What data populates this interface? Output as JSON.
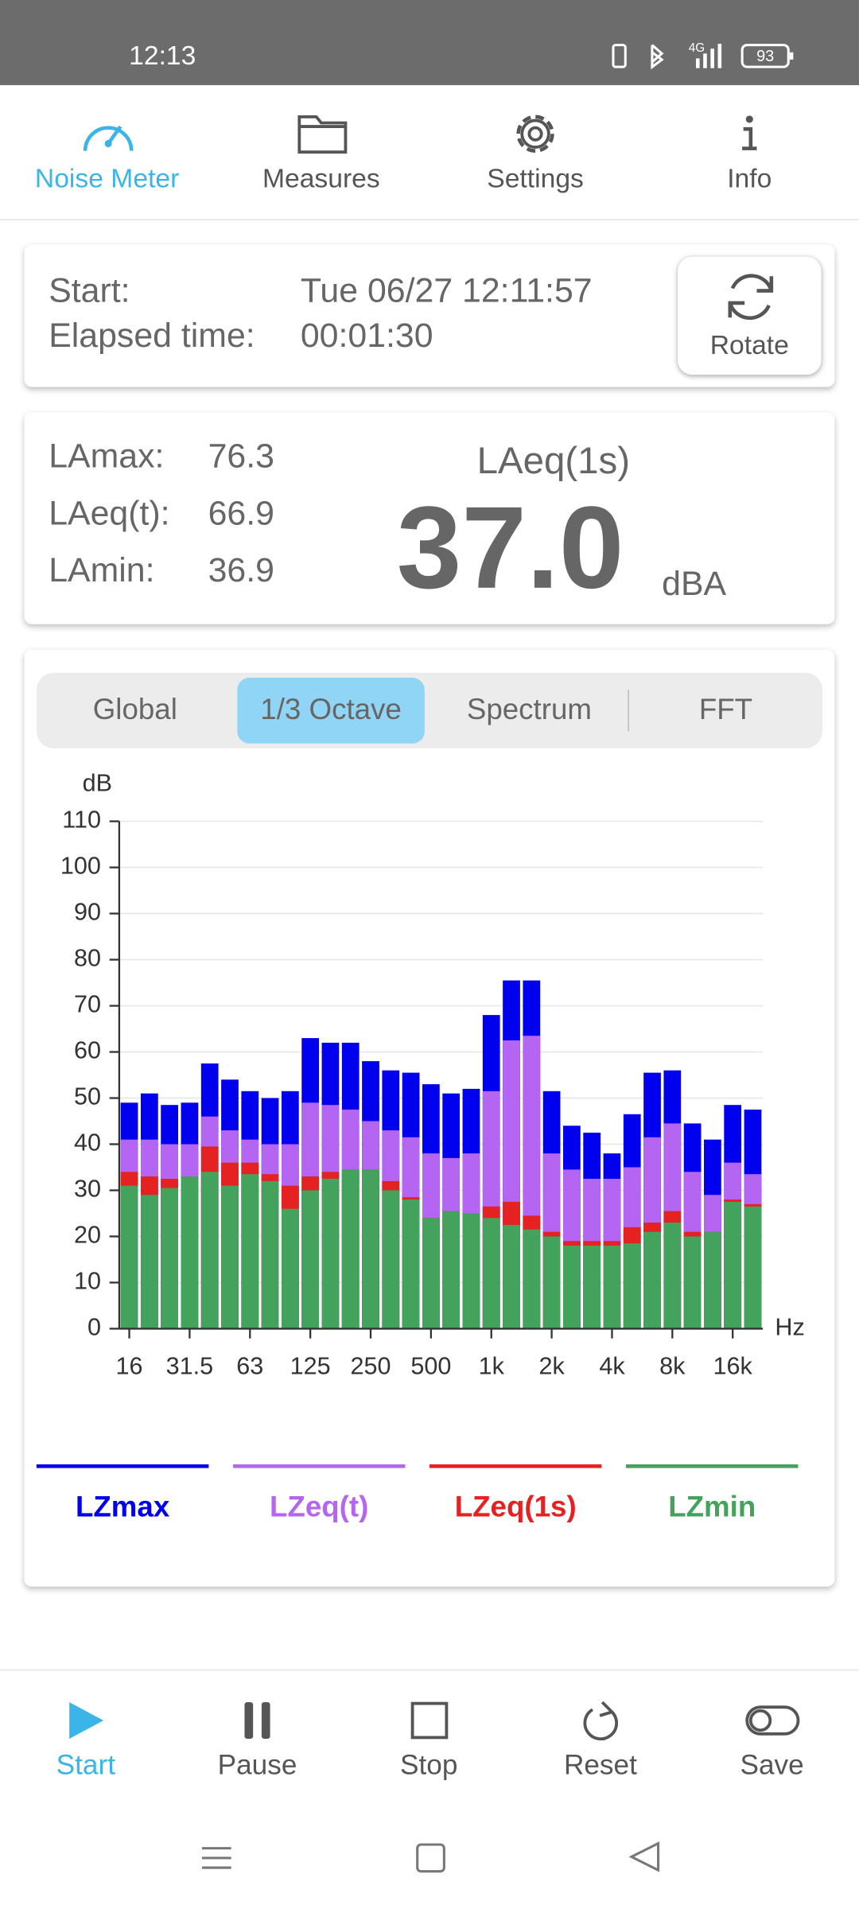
{
  "status_bar": {
    "time": "12:13",
    "network": "4G",
    "battery": "93"
  },
  "tabs": {
    "active": 0,
    "items": [
      "Noise Meter",
      "Measures",
      "Settings",
      "Info"
    ]
  },
  "session": {
    "start_label": "Start:",
    "start_value": "Tue 06/27 12:11:57",
    "elapsed_label": "Elapsed time:",
    "elapsed_value": "00:01:30",
    "rotate": "Rotate"
  },
  "levels": {
    "rows": [
      {
        "label": "LAmax:",
        "value": "76.3"
      },
      {
        "label": "LAeq(t):",
        "value": "66.9"
      },
      {
        "label": "LAmin:",
        "value": "36.9"
      }
    ],
    "main_label": "LAeq(1s)",
    "main_value": "37.0",
    "unit": "dBA"
  },
  "view_tabs": {
    "active": 1,
    "items": [
      "Global",
      "1/3 Octave",
      "Spectrum",
      "FFT"
    ]
  },
  "chart_data": {
    "type": "bar",
    "y_label": "dB",
    "x_label": "Hz",
    "categories": [
      "16",
      null,
      null,
      "31.5",
      null,
      null,
      "63",
      null,
      null,
      "125",
      null,
      null,
      "250",
      null,
      null,
      "500",
      null,
      null,
      "1k",
      null,
      null,
      "2k",
      null,
      null,
      "4k",
      null,
      null,
      "8k",
      null,
      null,
      "16k",
      null
    ],
    "series": [
      {
        "name": "LZmax",
        "color": "#0000ee",
        "values": [
          49,
          51,
          48.5,
          49,
          57.5,
          54,
          51.5,
          50,
          51.5,
          63,
          62,
          62,
          58,
          56,
          55.5,
          53,
          51,
          52,
          68,
          75.5,
          75.5,
          51.5,
          44,
          42.5,
          38,
          46.5,
          55.5,
          56,
          44.5,
          41,
          48.5,
          47.5
        ]
      },
      {
        "name": "LZeq(t)",
        "color": "#b466f2",
        "values": [
          41,
          41,
          40,
          40,
          46,
          43,
          41,
          40,
          40,
          49,
          48.5,
          47.5,
          45,
          43,
          41.5,
          38,
          37,
          38,
          51.5,
          62.5,
          63.5,
          38,
          34.5,
          32.5,
          32.5,
          35,
          41.5,
          44.5,
          34,
          29,
          36,
          33.5
        ]
      },
      {
        "name": "LZeq(1s)",
        "color": "#e52222",
        "values": [
          34,
          33,
          32.5,
          33,
          39.5,
          36,
          36,
          33.5,
          31,
          33,
          34,
          34.5,
          34.5,
          32,
          28.5,
          24,
          25.5,
          25,
          26.5,
          27.5,
          24.5,
          21,
          19,
          19,
          19,
          22,
          23,
          25.5,
          21,
          21,
          28,
          27
        ]
      },
      {
        "name": "LZmin",
        "color": "#43a35c",
        "values": [
          31,
          29,
          30.5,
          33,
          34,
          31,
          33.5,
          32,
          26,
          30,
          32.5,
          34.5,
          34.5,
          30,
          28,
          24,
          25.5,
          25,
          24,
          22.5,
          21.5,
          20,
          18,
          18,
          18,
          18.5,
          21,
          23,
          20,
          21,
          27.5,
          26.5
        ]
      }
    ],
    "ylim": [
      0,
      110
    ],
    "yticks": [
      0,
      10,
      20,
      30,
      40,
      50,
      60,
      70,
      80,
      90,
      100,
      110
    ],
    "grid": true
  },
  "controls": [
    "Start",
    "Pause",
    "Stop",
    "Reset",
    "Save"
  ]
}
